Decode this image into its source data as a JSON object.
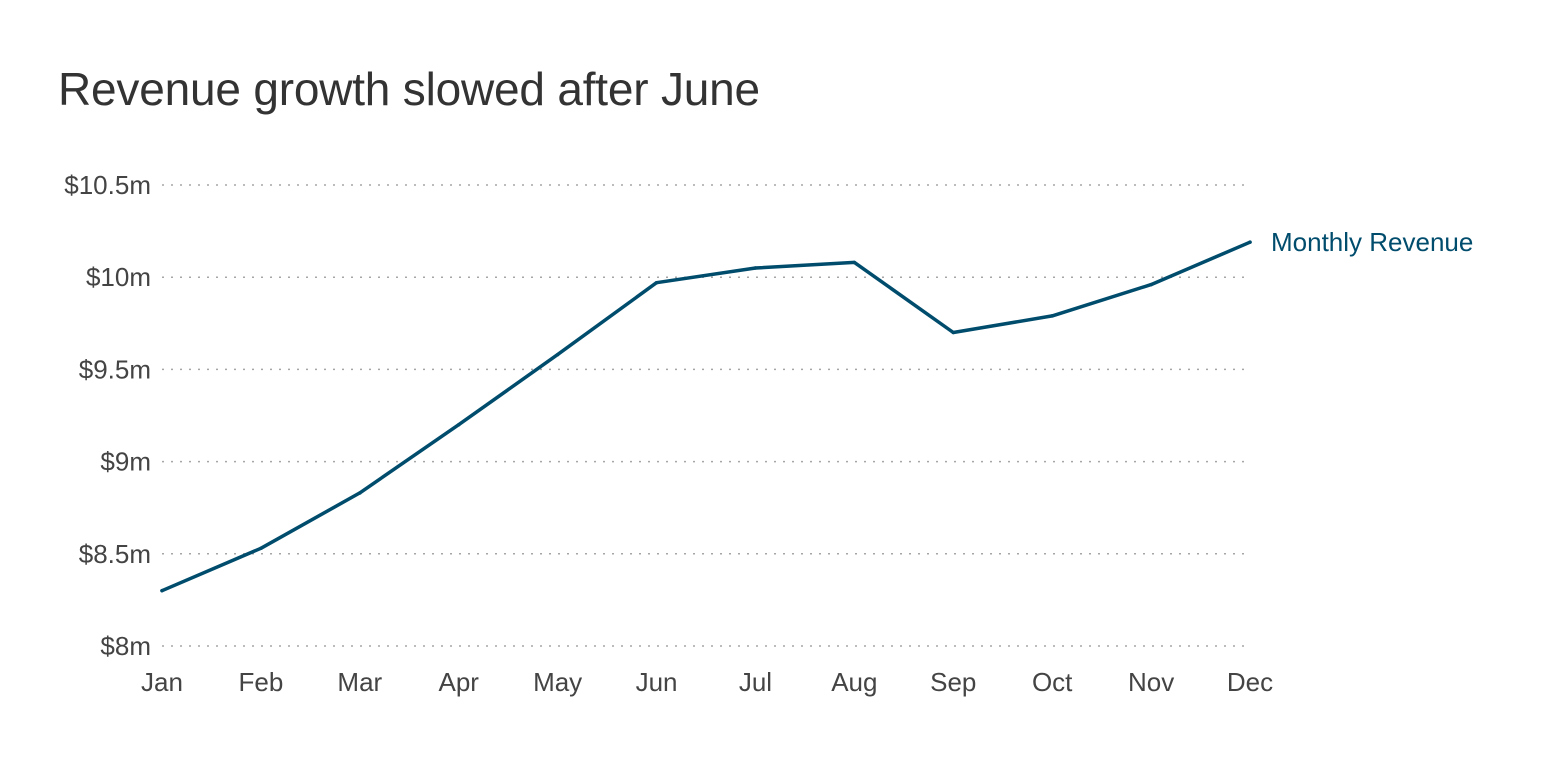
{
  "chart_data": {
    "type": "line",
    "title": "Revenue growth slowed after June",
    "xlabel": "",
    "ylabel": "",
    "categories": [
      "Jan",
      "Feb",
      "Mar",
      "Apr",
      "May",
      "Jun",
      "Jul",
      "Aug",
      "Sep",
      "Oct",
      "Nov",
      "Dec"
    ],
    "series": [
      {
        "name": "Monthly Revenue",
        "values": [
          8.3,
          8.53,
          8.83,
          9.2,
          9.58,
          9.97,
          10.05,
          10.08,
          9.7,
          9.79,
          9.96,
          10.19
        ],
        "color": "#004c6d"
      }
    ],
    "y_ticks": [
      {
        "value": 8,
        "label": "$8m"
      },
      {
        "value": 8.5,
        "label": "$8.5m"
      },
      {
        "value": 9,
        "label": "$9m"
      },
      {
        "value": 9.5,
        "label": "$9.5m"
      },
      {
        "value": 10,
        "label": "$10m"
      },
      {
        "value": 10.5,
        "label": "$10.5m"
      }
    ],
    "ylim": [
      8,
      10.5
    ],
    "grid": "horizontal dotted",
    "legend": "direct label at line end"
  }
}
